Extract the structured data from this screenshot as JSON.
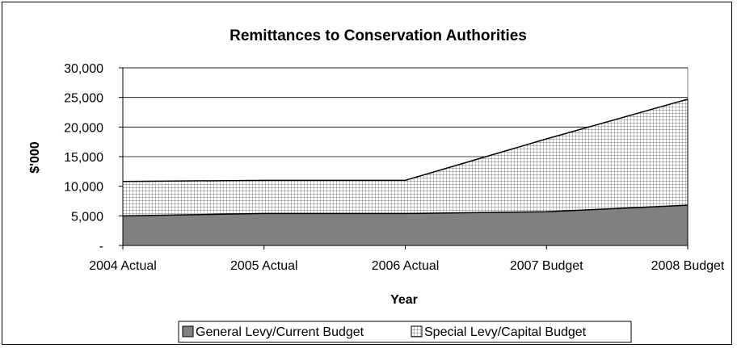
{
  "chart_data": {
    "type": "area",
    "stacked": true,
    "title": "Remittances to Conservation Authorities",
    "xlabel": "Year",
    "ylabel": "$'000",
    "categories": [
      "2004 Actual",
      "2005 Actual",
      "2006 Actual",
      "2007 Budget",
      "2008 Budget"
    ],
    "series": [
      {
        "name": "General Levy/Current Budget",
        "values": [
          5000,
          5400,
          5400,
          5700,
          6800
        ],
        "color": "#808080",
        "pattern": "solid"
      },
      {
        "name": "Special Levy/Capital Budget",
        "values": [
          5800,
          5600,
          5600,
          12300,
          17900
        ],
        "color": "#ffffff",
        "pattern": "grid"
      }
    ],
    "ylim": [
      0,
      30000
    ],
    "yticks": [
      0,
      5000,
      10000,
      15000,
      20000,
      25000,
      30000
    ],
    "ytick_labels": [
      "-",
      "5,000",
      "10,000",
      "15,000",
      "20,000",
      "25,000",
      "30,000"
    ],
    "grid": "horizontal",
    "legend": "bottom"
  }
}
